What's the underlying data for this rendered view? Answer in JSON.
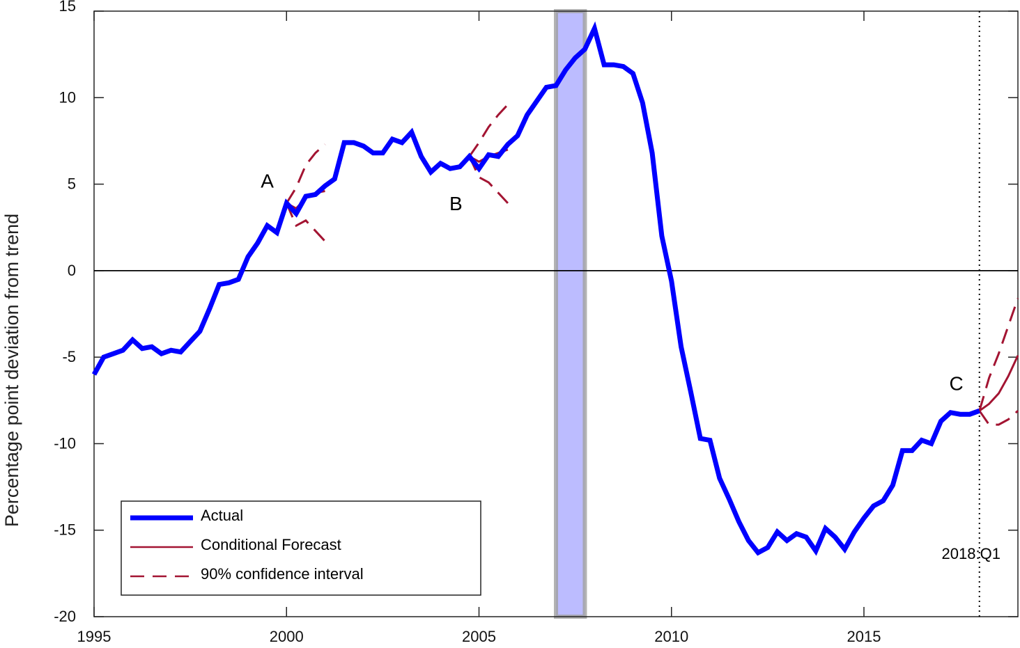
{
  "chart_data": {
    "type": "line",
    "title": "",
    "xlabel": "",
    "ylabel": "Percentage point deviation from trend",
    "xlim": [
      1995,
      2019
    ],
    "ylim": [
      -20,
      15
    ],
    "x_ticks": [
      1995,
      2000,
      2005,
      2010,
      2015
    ],
    "y_ticks": [
      15,
      10,
      5,
      0,
      -5,
      -10,
      -15,
      -20
    ],
    "grid": false,
    "zero_line": true,
    "legend_position": "bottom-left",
    "colors": {
      "actual": "#0000ff",
      "forecast": "#a31432",
      "shade": "#bcbcff",
      "shade_border": "#a0a0a0"
    },
    "shaded_period": [
      2007.0,
      2007.75
    ],
    "vertical_marker": {
      "x": 2018.0,
      "label": "2018:Q1"
    },
    "legend": {
      "actual": "Actual",
      "forecast": "Conditional Forecast",
      "ci": "90% confidence interval"
    },
    "annotations": [
      {
        "label": "A",
        "x": 1999.5,
        "y": 4.8
      },
      {
        "label": "B",
        "x": 2004.4,
        "y": 3.5
      },
      {
        "label": "C",
        "x": 2017.4,
        "y": -6.9
      }
    ],
    "actual": {
      "name": "Actual",
      "x_start": 1995.0,
      "step": 0.25,
      "values": [
        -6.0,
        -5.0,
        -4.8,
        -4.6,
        -4.0,
        -4.5,
        -4.4,
        -4.8,
        -4.6,
        -4.7,
        -4.1,
        -3.5,
        -2.2,
        -0.8,
        -0.7,
        -0.5,
        0.8,
        1.6,
        2.6,
        2.2,
        3.9,
        3.3,
        4.3,
        4.4,
        4.9,
        5.3,
        7.4,
        7.4,
        7.2,
        6.8,
        6.8,
        7.6,
        7.4,
        8.0,
        6.6,
        5.7,
        6.2,
        5.9,
        6.0,
        6.6,
        5.9,
        6.7,
        6.6,
        7.3,
        7.8,
        9.0,
        9.8,
        10.6,
        10.7,
        11.6,
        12.3,
        12.8,
        14.0,
        11.9,
        11.9,
        11.8,
        11.4,
        9.7,
        6.8,
        2.0,
        -0.6,
        -4.4,
        -7.0,
        -9.7,
        -9.8,
        -12.0,
        -13.2,
        -14.5,
        -15.6,
        -16.3,
        -16.0,
        -15.1,
        -15.6,
        -15.2,
        -15.4,
        -16.2,
        -14.9,
        -15.4,
        -16.1,
        -15.1,
        -14.3,
        -13.6,
        -13.3,
        -12.4,
        -10.4,
        -10.4,
        -9.8,
        -10.0,
        -8.7,
        -8.2,
        -8.3,
        -8.3,
        -8.1
      ]
    },
    "forecasts": [
      {
        "id": "A",
        "x": [
          2000.0,
          2000.25,
          2000.5,
          2000.75,
          2001.0
        ],
        "central": [
          3.9,
          3.6,
          4.2,
          4.5,
          4.6
        ],
        "upper": [
          3.9,
          4.8,
          6.1,
          6.8,
          7.3
        ],
        "lower": [
          3.9,
          2.6,
          2.9,
          2.3,
          1.7
        ]
      },
      {
        "id": "B",
        "x": [
          2004.75,
          2005.0,
          2005.25,
          2005.5,
          2005.75
        ],
        "central": [
          6.6,
          6.3,
          6.6,
          6.8,
          7.0
        ],
        "upper": [
          6.6,
          7.4,
          8.3,
          9.0,
          9.6
        ],
        "lower": [
          6.6,
          5.4,
          5.1,
          4.5,
          3.9
        ]
      },
      {
        "id": "C",
        "x": [
          2018.0,
          2018.25,
          2018.5,
          2018.75,
          2019.0
        ],
        "central": [
          -8.1,
          -7.7,
          -7.1,
          -6.1,
          -4.9
        ],
        "upper": [
          -8.1,
          -6.2,
          -4.8,
          -3.2,
          -1.6
        ],
        "lower": [
          -8.1,
          -8.9,
          -8.9,
          -8.6,
          -8.1
        ]
      }
    ]
  }
}
